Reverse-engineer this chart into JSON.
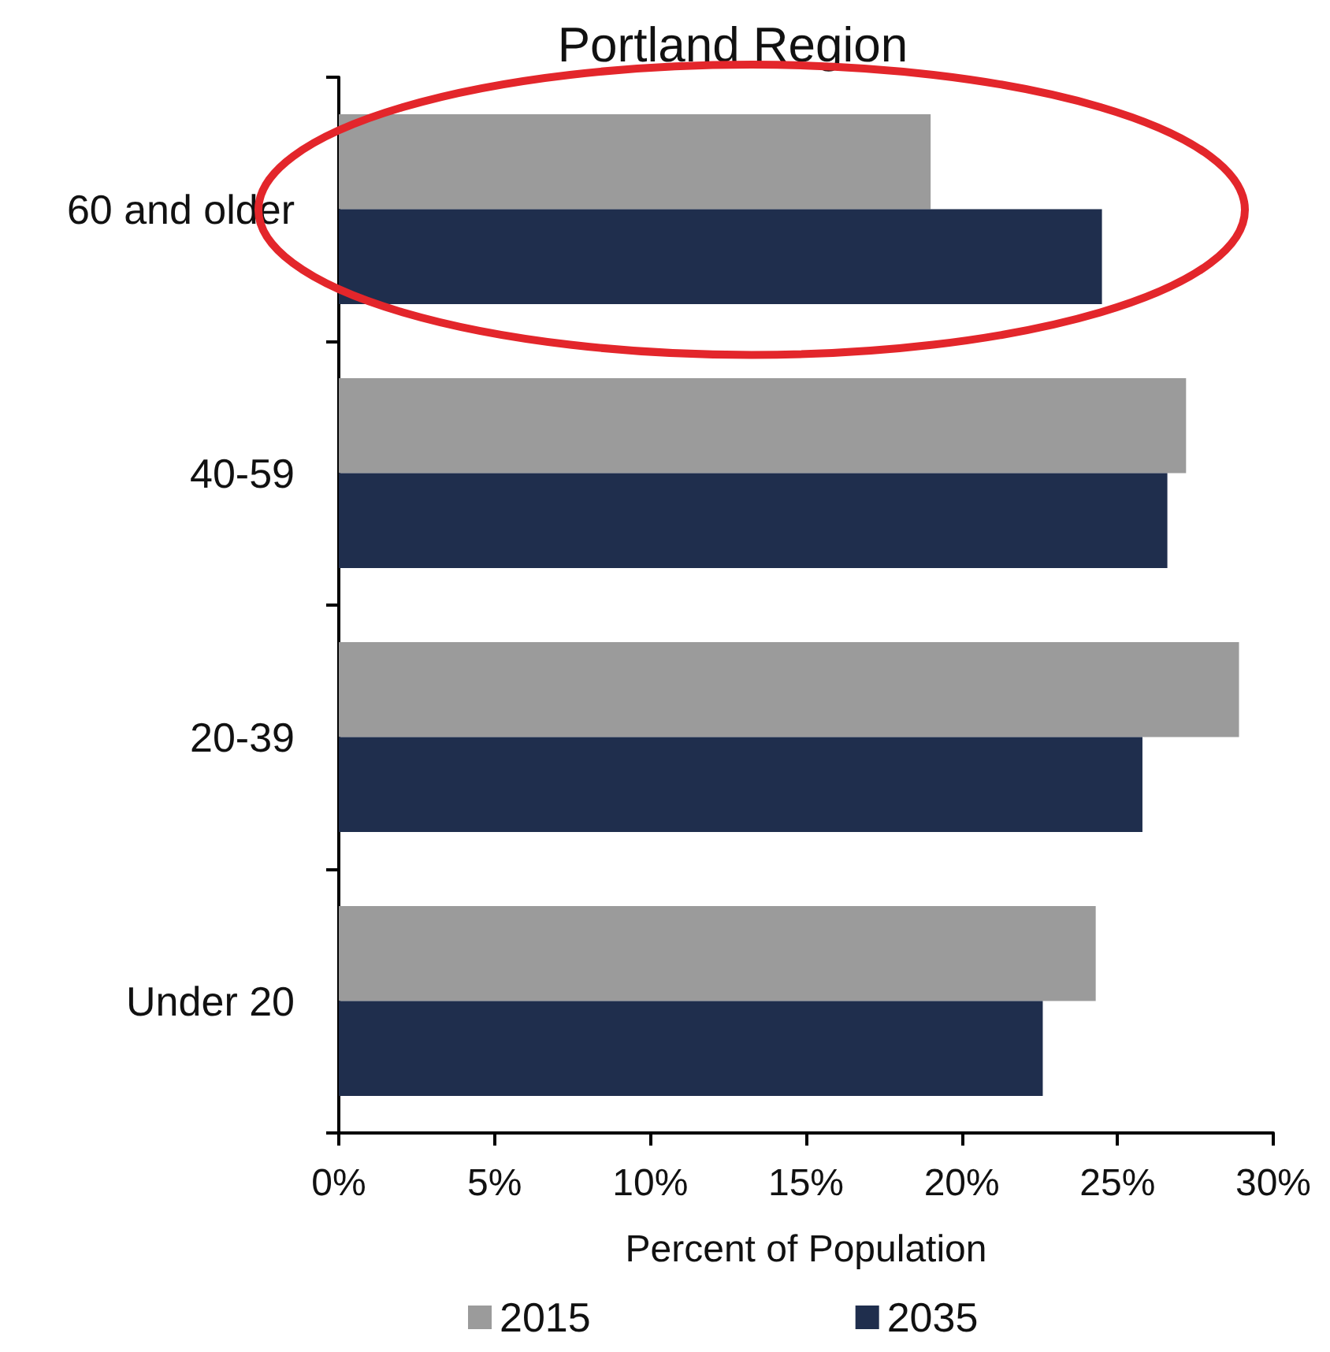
{
  "chart_data": {
    "type": "bar",
    "orientation": "horizontal",
    "title": "Portland Region",
    "xlabel": "Percent of Population",
    "categories": [
      "60 and older",
      "40-59",
      "20-39",
      "Under 20"
    ],
    "series": [
      {
        "name": "2015",
        "color": "#9b9b9b",
        "values": [
          19.0,
          27.2,
          28.9,
          24.3
        ]
      },
      {
        "name": "2035",
        "color": "#1f2e4d",
        "values": [
          24.5,
          26.6,
          25.8,
          22.6
        ]
      }
    ],
    "xlim": [
      0,
      30
    ],
    "xticks": [
      {
        "value": 0,
        "label": "0%"
      },
      {
        "value": 5,
        "label": "5%"
      },
      {
        "value": 10,
        "label": "10%"
      },
      {
        "value": 15,
        "label": "15%"
      },
      {
        "value": 20,
        "label": "20%"
      },
      {
        "value": 25,
        "label": "25%"
      },
      {
        "value": 30,
        "label": "30%"
      }
    ],
    "legend": "bottom"
  }
}
